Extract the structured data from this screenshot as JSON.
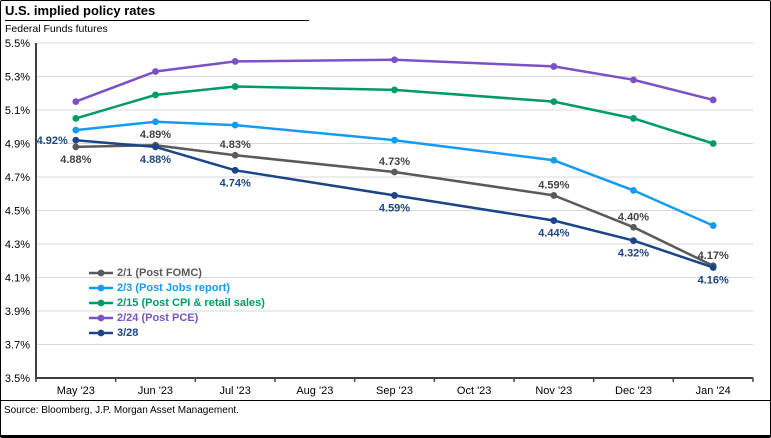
{
  "header": {
    "title": "U.S. implied policy rates",
    "subtitle": "Federal Funds futures"
  },
  "footer": {
    "source": "Source: Bloomberg, J.P. Morgan Asset Management."
  },
  "chart_data": {
    "type": "line",
    "title": "U.S. implied policy rates",
    "subtitle": "Federal Funds futures",
    "xlabel": "",
    "ylabel": "",
    "categories": [
      "May '23",
      "Jun '23",
      "Jul '23",
      "Aug '23",
      "Sep '23",
      "Oct '23",
      "Nov '23",
      "Dec '23",
      "Jan '24"
    ],
    "ylim": [
      3.5,
      5.5
    ],
    "ytick_step": 0.2,
    "ytick_labels": [
      "5.5%",
      "5.3%",
      "5.1%",
      "4.9%",
      "4.7%",
      "4.5%",
      "4.3%",
      "4.1%",
      "3.9%",
      "3.7%",
      "3.5%"
    ],
    "grid": true,
    "legend_position": "inside-bottom-left",
    "axis_color": "#404040",
    "grid_color": "#D9D9D9",
    "series": [
      {
        "name": "2/1 (Post FOMC)",
        "color": "#5A5A5A",
        "label_color": "#444444",
        "values": [
          4.88,
          4.89,
          4.83,
          null,
          4.73,
          null,
          4.59,
          4.4,
          4.17
        ],
        "point_labels": [
          "4.88%",
          "4.89%",
          "4.83%",
          null,
          "4.73%",
          null,
          "4.59%",
          "4.40%",
          "4.17%"
        ],
        "label_positions": [
          "below",
          "above",
          "above",
          null,
          "above",
          null,
          "above",
          "above",
          "above"
        ]
      },
      {
        "name": "2/3 (Post Jobs report)",
        "color": "#149BF1",
        "label_color": "#149BF1",
        "values": [
          4.98,
          5.03,
          5.01,
          null,
          4.92,
          null,
          4.8,
          4.62,
          4.41
        ],
        "point_labels": [
          null,
          null,
          null,
          null,
          null,
          null,
          null,
          null,
          null
        ],
        "label_positions": [
          null,
          null,
          null,
          null,
          null,
          null,
          null,
          null,
          null
        ]
      },
      {
        "name": "2/15 (Post CPI & retail sales)",
        "color": "#009A66",
        "label_color": "#009A66",
        "values": [
          5.05,
          5.19,
          5.24,
          null,
          5.22,
          null,
          5.15,
          5.05,
          4.9
        ],
        "point_labels": [
          null,
          null,
          null,
          null,
          null,
          null,
          null,
          null,
          null
        ],
        "label_positions": [
          null,
          null,
          null,
          null,
          null,
          null,
          null,
          null,
          null
        ]
      },
      {
        "name": "2/24 (Post PCE)",
        "color": "#7B52C4",
        "label_color": "#7B52C4",
        "values": [
          5.15,
          5.33,
          5.39,
          null,
          5.4,
          null,
          5.36,
          5.28,
          5.16
        ],
        "point_labels": [
          null,
          null,
          null,
          null,
          null,
          null,
          null,
          null,
          null
        ],
        "label_positions": [
          null,
          null,
          null,
          null,
          null,
          null,
          null,
          null,
          null
        ]
      },
      {
        "name": "3/28",
        "color": "#1C4587",
        "label_color": "#1C4587",
        "values": [
          4.92,
          4.88,
          4.74,
          null,
          4.59,
          null,
          4.44,
          4.32,
          4.16
        ],
        "point_labels": [
          "4.92%",
          "4.88%",
          "4.74%",
          null,
          "4.59%",
          null,
          "4.44%",
          "4.32%",
          "4.16%"
        ],
        "label_positions": [
          "left",
          "below",
          "below",
          null,
          "below",
          null,
          "below",
          "below",
          "below"
        ]
      }
    ]
  }
}
